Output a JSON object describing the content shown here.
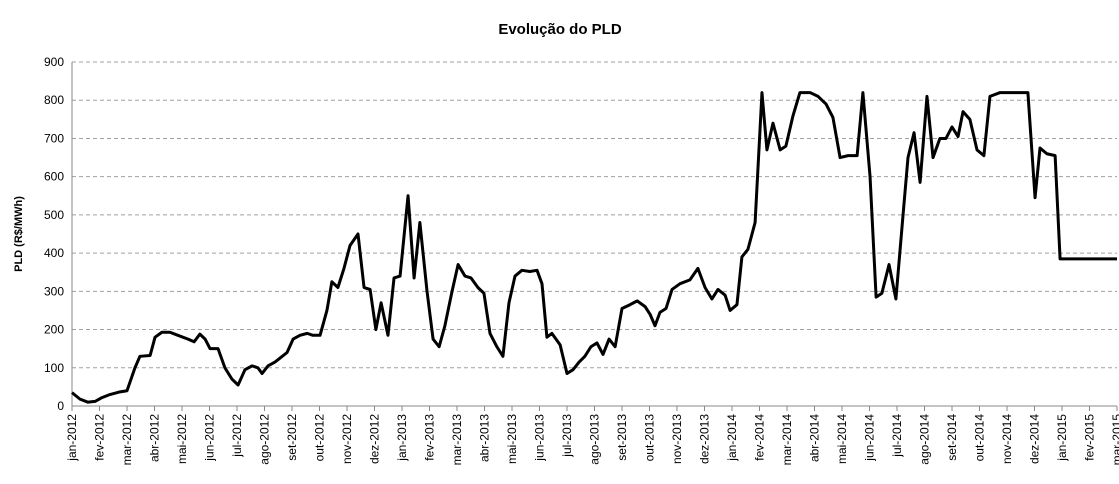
{
  "chart_data": {
    "type": "line",
    "title": "Evolução do PLD",
    "y_label": "PLD (R$/MWh)",
    "x": [
      0,
      0.29,
      0.58,
      0.84,
      1.09,
      1.38,
      1.75,
      2.0,
      2.29,
      2.47,
      2.84,
      3.02,
      3.27,
      3.56,
      3.85,
      4.22,
      4.44,
      4.65,
      4.84,
      5.02,
      5.31,
      5.56,
      5.82,
      6.04,
      6.29,
      6.55,
      6.76,
      6.91,
      7.13,
      7.38,
      7.56,
      7.82,
      8.04,
      8.29,
      8.55,
      8.76,
      9.02,
      9.27,
      9.45,
      9.67,
      9.89,
      10.11,
      10.4,
      10.62,
      10.84,
      11.05,
      11.24,
      11.49,
      11.71,
      11.93,
      12.22,
      12.44,
      12.65,
      12.91,
      13.13,
      13.35,
      13.56,
      13.82,
      14.04,
      14.29,
      14.51,
      14.76,
      14.98,
      15.2,
      15.45,
      15.67,
      15.89,
      16.11,
      16.36,
      16.65,
      16.91,
      17.09,
      17.27,
      17.45,
      17.75,
      18.0,
      18.22,
      18.44,
      18.65,
      18.87,
      19.09,
      19.31,
      19.53,
      19.75,
      20.0,
      20.29,
      20.55,
      20.84,
      21.02,
      21.2,
      21.38,
      21.6,
      21.82,
      22.11,
      22.47,
      22.76,
      23.02,
      23.27,
      23.49,
      23.75,
      23.93,
      24.18,
      24.36,
      24.58,
      24.84,
      25.09,
      25.27,
      25.49,
      25.75,
      25.96,
      26.22,
      26.47,
      26.84,
      27.13,
      27.42,
      27.67,
      27.93,
      28.22,
      28.55,
      28.76,
      29.02,
      29.24,
      29.45,
      29.71,
      29.96,
      30.22,
      30.4,
      30.62,
      30.84,
      31.09,
      31.31,
      31.56,
      31.78,
      32.0,
      32.22,
      32.4,
      32.65,
      32.91,
      33.16,
      33.38,
      33.75,
      34.29,
      34.76,
      35.02,
      35.2,
      35.45,
      35.75,
      35.93,
      38.0
    ],
    "values": [
      35,
      18,
      10,
      12,
      22,
      30,
      37,
      40,
      100,
      130,
      132,
      180,
      193,
      193,
      185,
      175,
      168,
      188,
      175,
      150,
      150,
      100,
      70,
      55,
      95,
      105,
      100,
      85,
      105,
      115,
      125,
      140,
      175,
      185,
      190,
      185,
      185,
      250,
      325,
      310,
      360,
      420,
      450,
      310,
      305,
      200,
      270,
      185,
      335,
      340,
      550,
      335,
      480,
      300,
      175,
      155,
      210,
      300,
      370,
      340,
      335,
      310,
      295,
      190,
      155,
      130,
      270,
      340,
      355,
      352,
      355,
      320,
      180,
      190,
      160,
      85,
      95,
      115,
      130,
      155,
      165,
      135,
      175,
      155,
      255,
      265,
      275,
      260,
      240,
      210,
      245,
      255,
      305,
      320,
      330,
      360,
      310,
      280,
      305,
      290,
      250,
      265,
      390,
      410,
      480,
      820,
      670,
      740,
      670,
      680,
      760,
      820,
      820,
      810,
      790,
      755,
      650,
      655,
      655,
      820,
      600,
      285,
      295,
      370,
      280,
      500,
      650,
      715,
      585,
      810,
      650,
      700,
      700,
      730,
      705,
      770,
      750,
      670,
      655,
      810,
      820,
      820,
      820,
      545,
      675,
      660,
      655,
      385,
      385
    ],
    "color": "#000000",
    "xlim": [
      0,
      38
    ],
    "xticks": [
      {
        "value": 0,
        "label": "jan-2012"
      },
      {
        "value": 1,
        "label": "fev-2012"
      },
      {
        "value": 2,
        "label": "mar-2012"
      },
      {
        "value": 3,
        "label": "abr-2012"
      },
      {
        "value": 4,
        "label": "mai-2012"
      },
      {
        "value": 5,
        "label": "jun-2012"
      },
      {
        "value": 6,
        "label": "jul-2012"
      },
      {
        "value": 7,
        "label": "ago-2012"
      },
      {
        "value": 8,
        "label": "set-2012"
      },
      {
        "value": 9,
        "label": "out-2012"
      },
      {
        "value": 10,
        "label": "nov-2012"
      },
      {
        "value": 11,
        "label": "dez-2012"
      },
      {
        "value": 12,
        "label": "jan-2013"
      },
      {
        "value": 13,
        "label": "fev-2013"
      },
      {
        "value": 14,
        "label": "mar-2013"
      },
      {
        "value": 15,
        "label": "abr-2013"
      },
      {
        "value": 16,
        "label": "mai-2013"
      },
      {
        "value": 17,
        "label": "jun-2013"
      },
      {
        "value": 18,
        "label": "jul-2013"
      },
      {
        "value": 19,
        "label": "ago-2013"
      },
      {
        "value": 20,
        "label": "set-2013"
      },
      {
        "value": 21,
        "label": "out-2013"
      },
      {
        "value": 22,
        "label": "nov-2013"
      },
      {
        "value": 23,
        "label": "dez-2013"
      },
      {
        "value": 24,
        "label": "jan-2014"
      },
      {
        "value": 25,
        "label": "fev-2014"
      },
      {
        "value": 26,
        "label": "mar-2014"
      },
      {
        "value": 27,
        "label": "abr-2014"
      },
      {
        "value": 28,
        "label": "mai-2014"
      },
      {
        "value": 29,
        "label": "jun-2014"
      },
      {
        "value": 30,
        "label": "jul-2014"
      },
      {
        "value": 31,
        "label": "ago-2014"
      },
      {
        "value": 32,
        "label": "set-2014"
      },
      {
        "value": 33,
        "label": "out-2014"
      },
      {
        "value": 34,
        "label": "nov-2014"
      },
      {
        "value": 35,
        "label": "dez-2014"
      },
      {
        "value": 36,
        "label": "jan-2015"
      },
      {
        "value": 37,
        "label": "fev-2015"
      },
      {
        "value": 38,
        "label": "mar-2015"
      }
    ],
    "ylim": [
      0,
      900
    ],
    "yticks": [
      0,
      100,
      200,
      300,
      400,
      500,
      600,
      700,
      800,
      900
    ],
    "grid": true
  }
}
